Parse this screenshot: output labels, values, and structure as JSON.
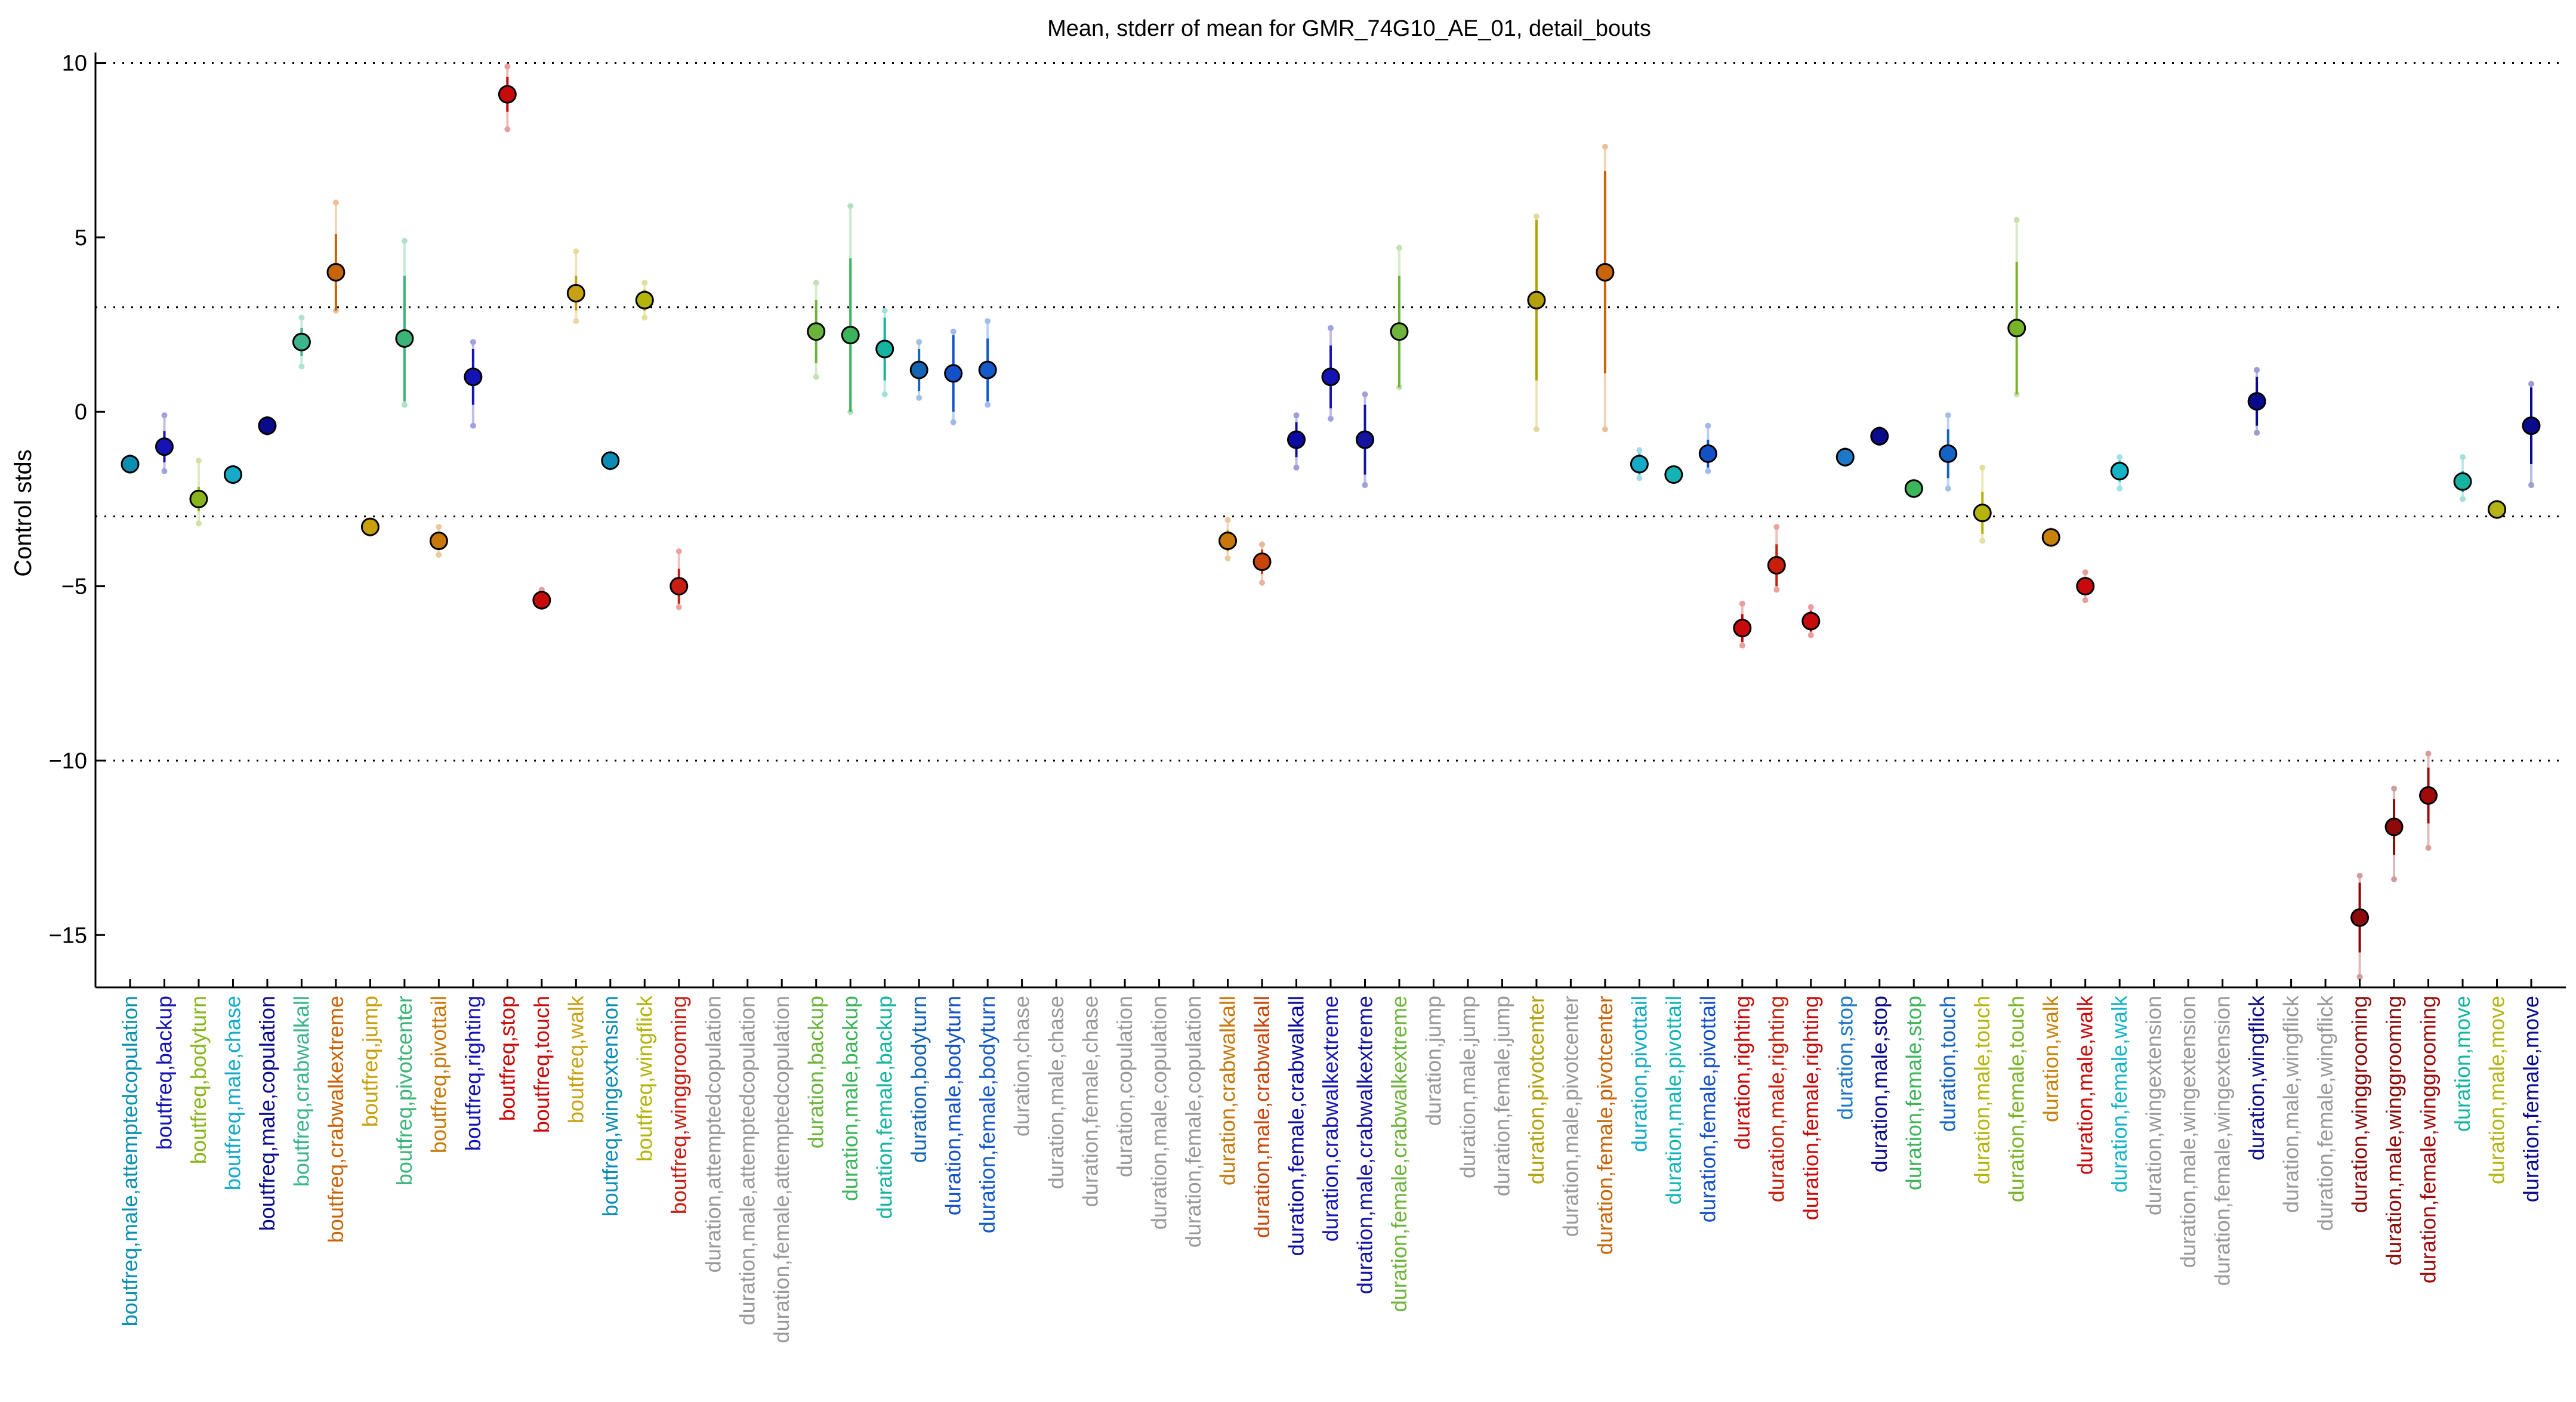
{
  "chart_data": {
    "type": "scatter",
    "title": "Mean, stderr of mean for GMR_74G10_AE_01, detail_bouts",
    "xlabel": "",
    "ylabel": "Control stds",
    "ylim": [
      -16.5,
      10.3
    ],
    "yticks": [
      10,
      5,
      0,
      -5,
      -10,
      -15
    ],
    "ytick_labels": [
      "10",
      "5",
      "0",
      "−5",
      "−10",
      "−15"
    ],
    "reference_lines": [
      10,
      3,
      -3,
      -10
    ],
    "grid": "dotted horizontal lines at reference values",
    "legend": "none",
    "missing_color": "#999999",
    "points": [
      {
        "label": "boutfreq,male,attemptedcopulation",
        "color": "#0a8fb0",
        "mean": -1.5,
        "se": 0.1,
        "ci": [
          -1.7,
          -1.3
        ]
      },
      {
        "label": "boutfreq,backup",
        "color": "#1414b4",
        "mean": -1.0,
        "se": 0.45,
        "ci": [
          -1.7,
          -0.1
        ]
      },
      {
        "label": "boutfreq,bodyturn",
        "color": "#8ab41e",
        "mean": -2.5,
        "se": 0.35,
        "ci": [
          -3.2,
          -1.4
        ]
      },
      {
        "label": "boutfreq,male,chase",
        "color": "#14aac8",
        "mean": -1.8,
        "se": 0.1,
        "ci": [
          -2.0,
          -1.6
        ]
      },
      {
        "label": "boutfreq,male,copulation",
        "color": "#0a0a8c",
        "mean": -0.4,
        "se": 0.1,
        "ci": [
          -0.6,
          -0.2
        ]
      },
      {
        "label": "boutfreq,crabwalkall",
        "color": "#3cb48c",
        "mean": 2.0,
        "se": 0.4,
        "ci": [
          1.3,
          2.7
        ]
      },
      {
        "label": "boutfreq,crabwalkextreme",
        "color": "#c8640a",
        "mean": 4.0,
        "se": 1.1,
        "ci": [
          2.9,
          6.0
        ]
      },
      {
        "label": "boutfreq,jump",
        "color": "#c8a00a",
        "mean": -3.3,
        "se": 0.1,
        "ci": [
          -3.5,
          -3.1
        ]
      },
      {
        "label": "boutfreq,pivotcenter",
        "color": "#3cb478",
        "mean": 2.1,
        "se": 1.8,
        "ci": [
          0.2,
          4.9
        ]
      },
      {
        "label": "boutfreq,pivottail",
        "color": "#c8780a",
        "mean": -3.7,
        "se": 0.2,
        "ci": [
          -4.1,
          -3.3
        ]
      },
      {
        "label": "boutfreq,righting",
        "color": "#1414b4",
        "mean": 1.0,
        "se": 0.8,
        "ci": [
          -0.4,
          2.0
        ]
      },
      {
        "label": "boutfreq,stop",
        "color": "#c80a0a",
        "mean": 9.1,
        "se": 0.5,
        "ci": [
          8.1,
          9.9
        ]
      },
      {
        "label": "boutfreq,touch",
        "color": "#c80a0a",
        "mean": -5.4,
        "se": 0.2,
        "ci": [
          -5.6,
          -5.1
        ]
      },
      {
        "label": "boutfreq,walk",
        "color": "#c8a014",
        "mean": 3.4,
        "se": 0.5,
        "ci": [
          2.6,
          4.6
        ]
      },
      {
        "label": "boutfreq,wingextension",
        "color": "#0a8cb4",
        "mean": -1.4,
        "se": 0.1,
        "ci": [
          -1.6,
          -1.2
        ]
      },
      {
        "label": "boutfreq,wingflick",
        "color": "#b4b40a",
        "mean": 3.2,
        "se": 0.3,
        "ci": [
          2.7,
          3.7
        ]
      },
      {
        "label": "boutfreq,winggrooming",
        "color": "#c81e14",
        "mean": -5.0,
        "se": 0.5,
        "ci": [
          -5.6,
          -4.0
        ]
      },
      {
        "label": "duration,attemptedcopulation",
        "color": "#999999",
        "mean": null,
        "se": null,
        "ci": null
      },
      {
        "label": "duration,male,attemptedcopulation",
        "color": "#999999",
        "mean": null,
        "se": null,
        "ci": null
      },
      {
        "label": "duration,female,attemptedcopulation",
        "color": "#999999",
        "mean": null,
        "se": null,
        "ci": null
      },
      {
        "label": "duration,backup",
        "color": "#6ab43c",
        "mean": 2.3,
        "se": 0.9,
        "ci": [
          1.0,
          3.7
        ]
      },
      {
        "label": "duration,male,backup",
        "color": "#3cb45a",
        "mean": 2.2,
        "se": 2.2,
        "ci": [
          0.0,
          5.9
        ]
      },
      {
        "label": "duration,female,backup",
        "color": "#14b4a0",
        "mean": 1.8,
        "se": 0.9,
        "ci": [
          0.5,
          2.9
        ]
      },
      {
        "label": "duration,bodyturn",
        "color": "#1464b4",
        "mean": 1.2,
        "se": 0.6,
        "ci": [
          0.4,
          2.0
        ]
      },
      {
        "label": "duration,male,bodyturn",
        "color": "#1450c8",
        "mean": 1.1,
        "se": 1.1,
        "ci": [
          -0.3,
          2.3
        ]
      },
      {
        "label": "duration,female,bodyturn",
        "color": "#145ac8",
        "mean": 1.2,
        "se": 0.9,
        "ci": [
          0.2,
          2.6
        ]
      },
      {
        "label": "duration,chase",
        "color": "#999999",
        "mean": null,
        "se": null,
        "ci": null
      },
      {
        "label": "duration,male,chase",
        "color": "#999999",
        "mean": null,
        "se": null,
        "ci": null
      },
      {
        "label": "duration,female,chase",
        "color": "#999999",
        "mean": null,
        "se": null,
        "ci": null
      },
      {
        "label": "duration,copulation",
        "color": "#999999",
        "mean": null,
        "se": null,
        "ci": null
      },
      {
        "label": "duration,male,copulation",
        "color": "#999999",
        "mean": null,
        "se": null,
        "ci": null
      },
      {
        "label": "duration,female,copulation",
        "color": "#999999",
        "mean": null,
        "se": null,
        "ci": null
      },
      {
        "label": "duration,crabwalkall",
        "color": "#c8780a",
        "mean": -3.7,
        "se": 0.3,
        "ci": [
          -4.2,
          -3.1
        ]
      },
      {
        "label": "duration,male,crabwalkall",
        "color": "#c8460a",
        "mean": -4.3,
        "se": 0.35,
        "ci": [
          -4.9,
          -3.8
        ]
      },
      {
        "label": "duration,female,crabwalkall",
        "color": "#0a0aa0",
        "mean": -0.8,
        "se": 0.5,
        "ci": [
          -1.6,
          -0.1
        ]
      },
      {
        "label": "duration,crabwalkextreme",
        "color": "#1414b4",
        "mean": 1.0,
        "se": 0.9,
        "ci": [
          -0.2,
          2.4
        ]
      },
      {
        "label": "duration,male,crabwalkextreme",
        "color": "#1414a0",
        "mean": -0.8,
        "se": 1.0,
        "ci": [
          -2.1,
          0.5
        ]
      },
      {
        "label": "duration,female,crabwalkextreme",
        "color": "#6eb43c",
        "mean": 2.3,
        "se": 1.6,
        "ci": [
          0.7,
          4.7
        ]
      },
      {
        "label": "duration,jump",
        "color": "#999999",
        "mean": null,
        "se": null,
        "ci": null
      },
      {
        "label": "duration,male,jump",
        "color": "#999999",
        "mean": null,
        "se": null,
        "ci": null
      },
      {
        "label": "duration,female,jump",
        "color": "#999999",
        "mean": null,
        "se": null,
        "ci": null
      },
      {
        "label": "duration,pivotcenter",
        "color": "#b4a00a",
        "mean": 3.2,
        "se": 2.3,
        "ci": [
          -0.5,
          5.6
        ]
      },
      {
        "label": "duration,male,pivotcenter",
        "color": "#999999",
        "mean": null,
        "se": null,
        "ci": null
      },
      {
        "label": "duration,female,pivotcenter",
        "color": "#c8640a",
        "mean": 4.0,
        "se": 2.9,
        "ci": [
          -0.5,
          7.6
        ]
      },
      {
        "label": "duration,pivottail",
        "color": "#14aac8",
        "mean": -1.5,
        "se": 0.3,
        "ci": [
          -1.9,
          -1.1
        ]
      },
      {
        "label": "duration,male,pivottail",
        "color": "#14b4b4",
        "mean": -1.8,
        "se": 0.1,
        "ci": [
          -1.9,
          -1.7
        ]
      },
      {
        "label": "duration,female,pivottail",
        "color": "#1450c8",
        "mean": -1.2,
        "se": 0.4,
        "ci": [
          -1.7,
          -0.4
        ]
      },
      {
        "label": "duration,righting",
        "color": "#c80a0a",
        "mean": -6.2,
        "se": 0.4,
        "ci": [
          -6.7,
          -5.5
        ]
      },
      {
        "label": "duration,male,righting",
        "color": "#c81e0a",
        "mean": -4.4,
        "se": 0.6,
        "ci": [
          -5.1,
          -3.3
        ]
      },
      {
        "label": "duration,female,righting",
        "color": "#c80a0a",
        "mean": -6.0,
        "se": 0.3,
        "ci": [
          -6.4,
          -5.6
        ]
      },
      {
        "label": "duration,stop",
        "color": "#1e78c8",
        "mean": -1.3,
        "se": 0.1,
        "ci": [
          -1.5,
          -1.1
        ]
      },
      {
        "label": "duration,male,stop",
        "color": "#0a0a8c",
        "mean": -0.7,
        "se": 0.1,
        "ci": [
          -0.9,
          -0.5
        ]
      },
      {
        "label": "duration,female,stop",
        "color": "#3cb45a",
        "mean": -2.2,
        "se": 0.1,
        "ci": [
          -2.4,
          -2.0
        ]
      },
      {
        "label": "duration,touch",
        "color": "#1464c8",
        "mean": -1.2,
        "se": 0.7,
        "ci": [
          -2.2,
          -0.1
        ]
      },
      {
        "label": "duration,male,touch",
        "color": "#b4b40a",
        "mean": -2.9,
        "se": 0.6,
        "ci": [
          -3.7,
          -1.6
        ]
      },
      {
        "label": "duration,female,touch",
        "color": "#78b428",
        "mean": 2.4,
        "se": 1.9,
        "ci": [
          0.5,
          5.5
        ]
      },
      {
        "label": "duration,walk",
        "color": "#c8820a",
        "mean": -3.6,
        "se": 0.1,
        "ci": [
          -3.8,
          -3.4
        ]
      },
      {
        "label": "duration,male,walk",
        "color": "#c80a0a",
        "mean": -5.0,
        "se": 0.2,
        "ci": [
          -5.4,
          -4.6
        ]
      },
      {
        "label": "duration,female,walk",
        "color": "#14b4c8",
        "mean": -1.7,
        "se": 0.3,
        "ci": [
          -2.2,
          -1.3
        ]
      },
      {
        "label": "duration,wingextension",
        "color": "#999999",
        "mean": null,
        "se": null,
        "ci": null
      },
      {
        "label": "duration,male,wingextension",
        "color": "#999999",
        "mean": null,
        "se": null,
        "ci": null
      },
      {
        "label": "duration,female,wingextension",
        "color": "#999999",
        "mean": null,
        "se": null,
        "ci": null
      },
      {
        "label": "duration,wingflick",
        "color": "#0a0a8c",
        "mean": 0.3,
        "se": 0.7,
        "ci": [
          -0.6,
          1.2
        ]
      },
      {
        "label": "duration,male,wingflick",
        "color": "#999999",
        "mean": null,
        "se": null,
        "ci": null
      },
      {
        "label": "duration,female,wingflick",
        "color": "#999999",
        "mean": null,
        "se": null,
        "ci": null
      },
      {
        "label": "duration,winggrooming",
        "color": "#8c0a0a",
        "mean": -14.5,
        "se": 1.0,
        "ci": [
          -16.2,
          -13.3
        ]
      },
      {
        "label": "duration,male,winggrooming",
        "color": "#8c0a0a",
        "mean": -11.9,
        "se": 0.8,
        "ci": [
          -13.4,
          -10.8
        ]
      },
      {
        "label": "duration,female,winggrooming",
        "color": "#a00a0a",
        "mean": -11.0,
        "se": 0.8,
        "ci": [
          -12.5,
          -9.8
        ]
      },
      {
        "label": "duration,move",
        "color": "#14b4a0",
        "mean": -2.0,
        "se": 0.3,
        "ci": [
          -2.5,
          -1.3
        ]
      },
      {
        "label": "duration,male,move",
        "color": "#b4b414",
        "mean": -2.8,
        "se": 0.1,
        "ci": [
          -3.0,
          -2.6
        ]
      },
      {
        "label": "duration,female,move",
        "color": "#0a0a8c",
        "mean": -0.4,
        "se": 1.1,
        "ci": [
          -2.1,
          0.8
        ]
      }
    ]
  }
}
